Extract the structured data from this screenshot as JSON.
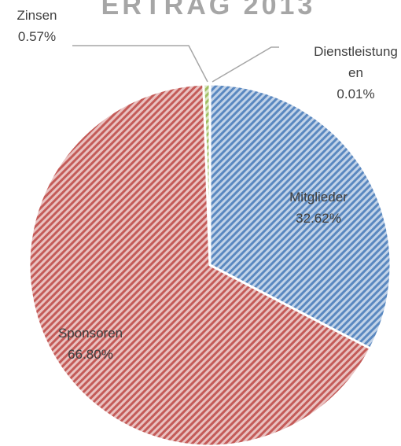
{
  "chart_data": {
    "type": "pie",
    "title": "ERTRAG 2013",
    "categories": [
      "Dienstleistungen",
      "Mitglieder",
      "Sponsoren",
      "Zinsen"
    ],
    "values": [
      0.01,
      32.62,
      66.8,
      0.57
    ],
    "value_labels": [
      "0.01%",
      "32.62%",
      "66.80%",
      "0.57%"
    ],
    "colors": [
      "#8064a2",
      "#4f81bd",
      "#c0504d",
      "#9bbb59"
    ]
  }
}
